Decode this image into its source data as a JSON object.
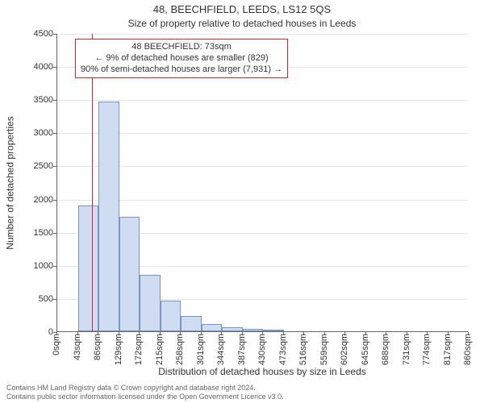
{
  "title": "48, BEECHFIELD, LEEDS, LS12 5QS",
  "subtitle": "Size of property relative to detached houses in Leeds",
  "ylabel": "Number of detached properties",
  "xlabel": "Distribution of detached houses by size in Leeds",
  "footer_line1": "Contains HM Land Registry data © Crown copyright and database right 2024.",
  "footer_line2": "Contains public sector information licensed under the Open Government Licence v3.0.",
  "chart": {
    "type": "histogram",
    "background_color": "#ffffff",
    "grid_color": "#e6e6e6",
    "axis_color": "#666666",
    "bar_fill": "#cfdcf2",
    "bar_stroke": "#7a94c6",
    "bar_stroke_width": 1,
    "marker_color": "#d9252b",
    "marker_width": 1.5,
    "annotation_border": "#d9252b",
    "text_color": "#333333",
    "tick_fontsize": 11,
    "label_fontsize": 12,
    "title_fontsize": 13,
    "xlim": [
      0,
      860
    ],
    "ylim": [
      0,
      4500
    ],
    "ytick_step": 500,
    "bin_width": 43,
    "bins": [
      {
        "start": 0,
        "count": 0
      },
      {
        "start": 43,
        "count": 1900
      },
      {
        "start": 86,
        "count": 3470
      },
      {
        "start": 129,
        "count": 1730
      },
      {
        "start": 172,
        "count": 850
      },
      {
        "start": 215,
        "count": 460
      },
      {
        "start": 258,
        "count": 230
      },
      {
        "start": 301,
        "count": 110
      },
      {
        "start": 344,
        "count": 60
      },
      {
        "start": 387,
        "count": 40
      },
      {
        "start": 430,
        "count": 30
      },
      {
        "start": 473,
        "count": 0
      },
      {
        "start": 516,
        "count": 0
      },
      {
        "start": 559,
        "count": 0
      },
      {
        "start": 602,
        "count": 0
      },
      {
        "start": 645,
        "count": 0
      },
      {
        "start": 688,
        "count": 0
      },
      {
        "start": 731,
        "count": 0
      },
      {
        "start": 774,
        "count": 0
      },
      {
        "start": 817,
        "count": 0
      }
    ],
    "xtick_labels": [
      "0sqm",
      "43sqm",
      "86sqm",
      "129sqm",
      "172sqm",
      "215sqm",
      "258sqm",
      "301sqm",
      "344sqm",
      "387sqm",
      "430sqm",
      "473sqm",
      "516sqm",
      "559sqm",
      "602sqm",
      "645sqm",
      "688sqm",
      "731sqm",
      "774sqm",
      "817sqm",
      "860sqm"
    ],
    "marker_value": 73,
    "annotation": {
      "line1": "48 BEECHFIELD: 73sqm",
      "line2": "← 9% of detached houses are smaller (829)",
      "line3": "90% of semi-detached houses are larger (7,931) →"
    }
  }
}
